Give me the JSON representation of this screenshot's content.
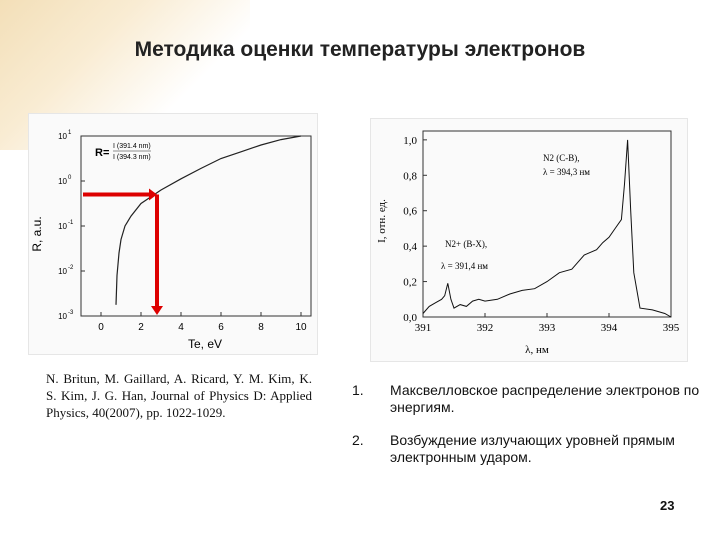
{
  "slide": {
    "title": "Методика оценки температуры электронов",
    "page_number": "23",
    "citation": "N. Britun, M. Gaillard, A. Ricard, Y. M. Kim, K. S. Kim, J. G. Han, Journal of Physics D: Applied Physics, 40(2007), pp. 1022-1029.",
    "list_items": [
      {
        "num": "1.",
        "text": "Максвелловское распределение электронов по энергиям."
      },
      {
        "num": "2.",
        "text": "Возбуждение излучающих уровней прямым электронным ударом."
      }
    ]
  },
  "chart_data": [
    {
      "type": "line",
      "ylabel": "R, a.u.",
      "xlabel": "Te, eV",
      "yscale": "log",
      "xlim": [
        -1,
        10.5
      ],
      "ylim_exponent": [
        -3,
        1
      ],
      "xticks": [
        "0",
        "2",
        "4",
        "6",
        "8",
        "10"
      ],
      "yticks": [
        "10^-3",
        "10^-2",
        "10^-1",
        "10^0",
        "10^1"
      ],
      "legend_label": "R=",
      "legend_num": "I (391.4 nm)",
      "legend_den": "I (394.3 nm)",
      "marker_x": 2.8,
      "marker_y_exp": -0.3,
      "x": [
        0.75,
        0.8,
        0.9,
        1.0,
        1.2,
        1.5,
        2.0,
        2.5,
        3.0,
        4.0,
        5.0,
        6.0,
        7.0,
        8.0,
        9.0,
        10.0
      ],
      "log10_y": [
        -2.75,
        -2.1,
        -1.6,
        -1.3,
        -1.0,
        -0.78,
        -0.5,
        -0.35,
        -0.2,
        0.05,
        0.28,
        0.5,
        0.65,
        0.8,
        0.92,
        1.0
      ],
      "colors": {
        "curve": "#222222",
        "arrow": "#dd0000"
      }
    },
    {
      "type": "line",
      "ylabel": "I, отн. ед.",
      "xlabel": "λ, нм",
      "xlim": [
        391,
        395
      ],
      "ylim": [
        0,
        1.05
      ],
      "xticks": [
        "391",
        "392",
        "393",
        "394",
        "395"
      ],
      "yticks": [
        "0,0",
        "0,2",
        "0,4",
        "0,6",
        "0,8",
        "1,0"
      ],
      "annotations": [
        {
          "line1": "N2 (C-B),",
          "line2": "λ = 394,3 нм"
        },
        {
          "line1": "N2+ (B-X),",
          "line2": "λ = 391,4 нм"
        }
      ],
      "x": [
        391.0,
        391.1,
        391.2,
        391.3,
        391.35,
        391.4,
        391.45,
        391.5,
        391.6,
        391.7,
        391.8,
        391.9,
        392.0,
        392.2,
        392.4,
        392.6,
        392.8,
        393.0,
        393.2,
        393.4,
        393.6,
        393.8,
        393.9,
        394.0,
        394.1,
        394.2,
        394.25,
        394.3,
        394.35,
        394.4,
        394.5,
        394.7,
        394.9,
        395.0
      ],
      "y": [
        0.02,
        0.06,
        0.08,
        0.1,
        0.12,
        0.19,
        0.1,
        0.05,
        0.07,
        0.06,
        0.09,
        0.1,
        0.09,
        0.1,
        0.13,
        0.15,
        0.16,
        0.2,
        0.25,
        0.27,
        0.35,
        0.38,
        0.42,
        0.45,
        0.5,
        0.55,
        0.75,
        1.0,
        0.6,
        0.25,
        0.05,
        0.04,
        0.02,
        0.0
      ]
    }
  ]
}
